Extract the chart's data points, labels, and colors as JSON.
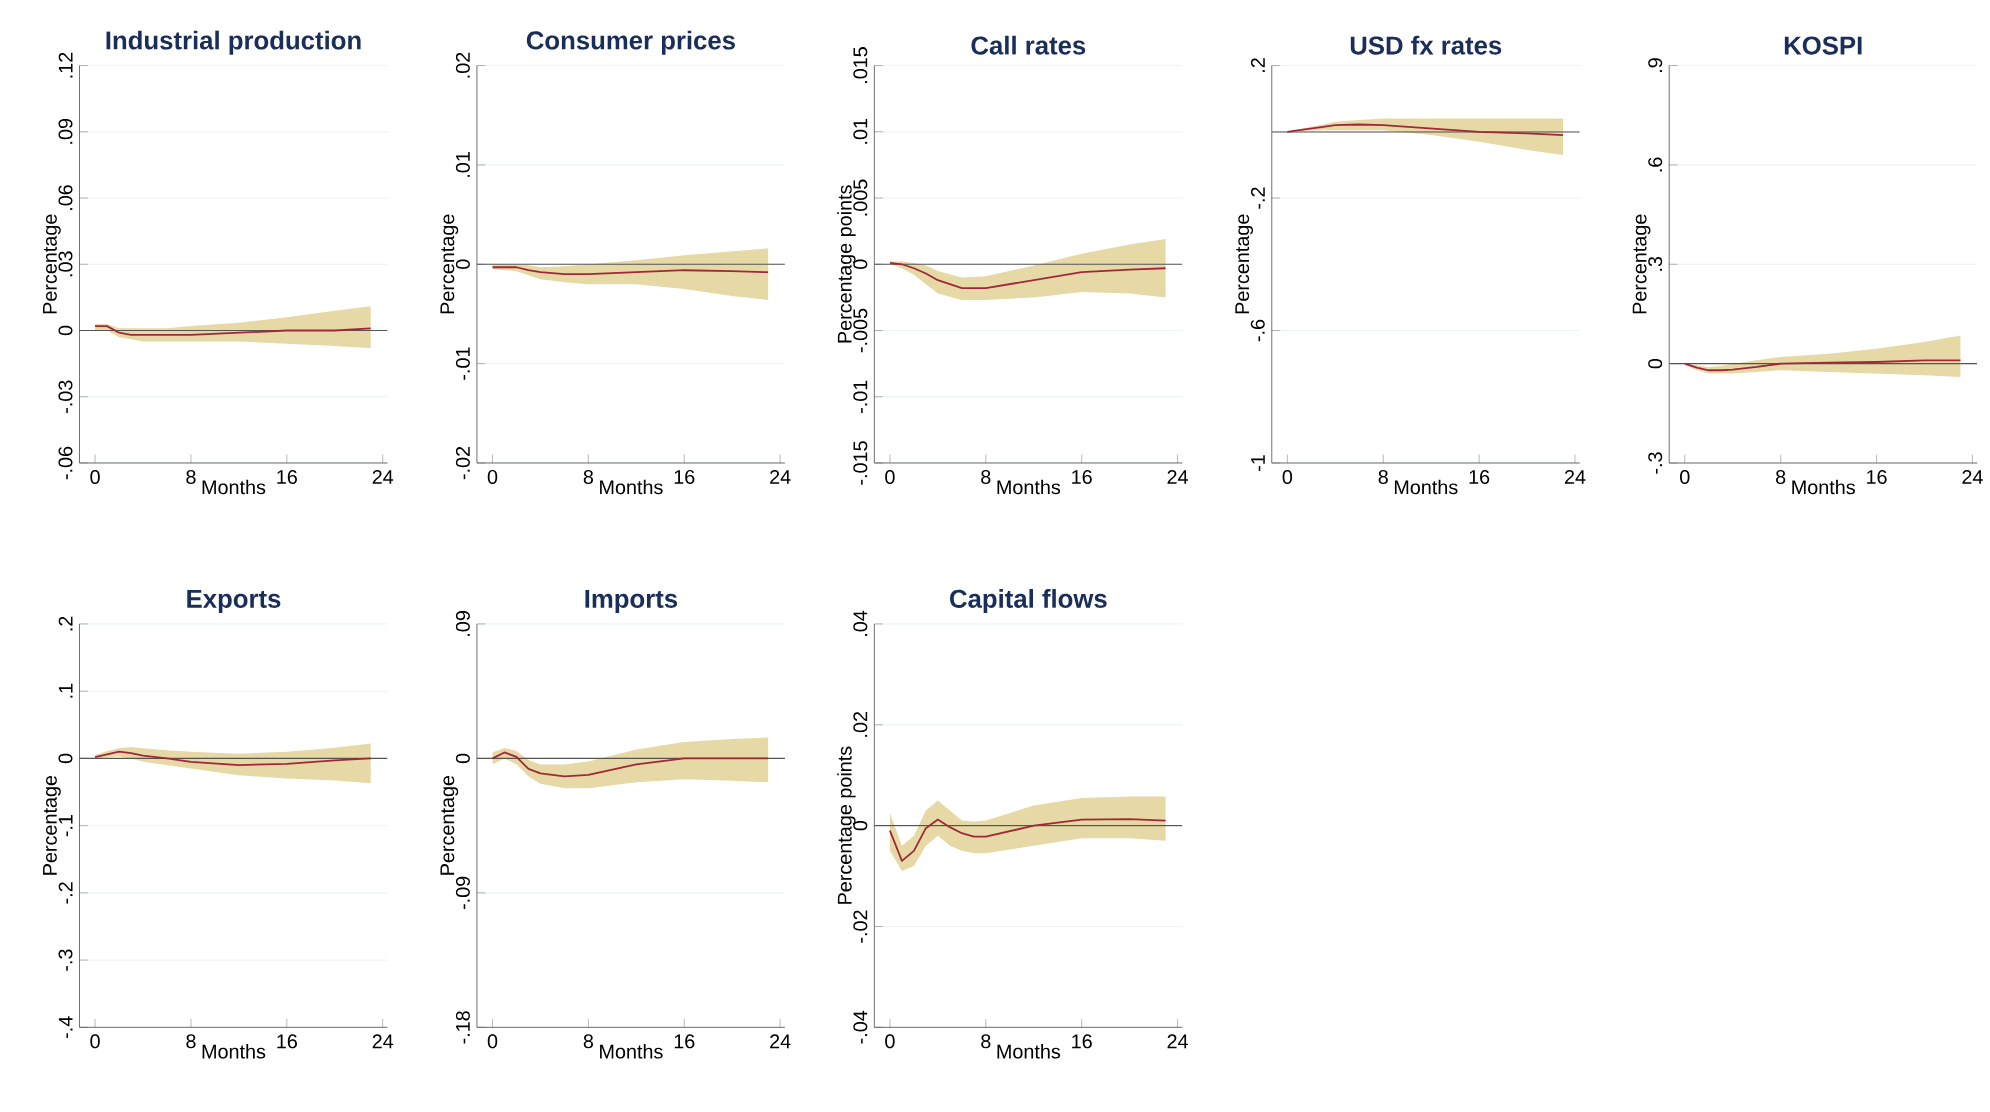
{
  "chart_data": [
    {
      "type": "line",
      "title": "Industrial production",
      "xlabel": "Months",
      "ylabel": "Percentage",
      "x": [
        0,
        1,
        2,
        3,
        4,
        6,
        8,
        12,
        16,
        20,
        23
      ],
      "xlim": [
        -1.3,
        24.4
      ],
      "xticks": [
        0,
        8,
        16,
        24
      ],
      "ylim": [
        -0.06,
        0.12
      ],
      "yticks": [
        {
          "value": -0.06,
          "label": "-.06"
        },
        {
          "value": -0.03,
          "label": "-.03"
        },
        0,
        {
          "value": 0.03,
          "label": ".03"
        },
        {
          "value": 0.06,
          "label": ".06"
        },
        {
          "value": 0.09,
          "label": ".09"
        },
        {
          "value": 0.12,
          "label": ".12"
        }
      ],
      "grid": "y",
      "ref_lines": [
        {
          "axis": "y",
          "value": 0,
          "color": "#555555"
        }
      ],
      "series": [
        {
          "color": "#a0283a",
          "values": [
            0.002,
            0.002,
            -0.001,
            -0.002,
            -0.002,
            -0.002,
            -0.002,
            -0.001,
            0,
            0,
            0.001
          ],
          "lower": [
            0,
            0,
            -0.003,
            -0.004,
            -0.005,
            -0.005,
            -0.005,
            -0.005,
            -0.006,
            -0.007,
            -0.008
          ],
          "upper": [
            0.003,
            0.003,
            0.001,
            0.001,
            0.001,
            0.001,
            0.002,
            0.0035,
            0.006,
            0.009,
            0.011
          ]
        }
      ]
    },
    {
      "type": "line",
      "title": "Consumer prices",
      "xlabel": "Months",
      "ylabel": "Percentage",
      "x": [
        0,
        1,
        2,
        3,
        4,
        6,
        8,
        12,
        16,
        20,
        23
      ],
      "xlim": [
        -1.3,
        24.4
      ],
      "xticks": [
        0,
        8,
        16,
        24
      ],
      "ylim": [
        -0.02,
        0.02
      ],
      "yticks": [
        {
          "value": -0.02,
          "label": "-.02"
        },
        {
          "value": -0.01,
          "label": "-.01"
        },
        0,
        {
          "value": 0.01,
          "label": ".01"
        },
        {
          "value": 0.02,
          "label": ".02"
        }
      ],
      "grid": "y",
      "ref_lines": [
        {
          "axis": "y",
          "value": 0,
          "color": "#555555"
        }
      ],
      "series": [
        {
          "color": "#a0283a",
          "values": [
            -0.0003,
            -0.0003,
            -0.0003,
            -0.0006,
            -0.0008,
            -0.001,
            -0.001,
            -0.0008,
            -0.0006,
            -0.0007,
            -0.0008
          ],
          "lower": [
            -0.0005,
            -0.0006,
            -0.0007,
            -0.0011,
            -0.0015,
            -0.0018,
            -0.002,
            -0.002,
            -0.0025,
            -0.0032,
            -0.0036
          ],
          "upper": [
            0,
            0,
            0,
            -0.0001,
            -0.0003,
            -0.0002,
            0,
            0.0004,
            0.0009,
            0.0013,
            0.0016
          ]
        }
      ]
    },
    {
      "type": "line",
      "title": "Call rates",
      "xlabel": "Months",
      "ylabel": "Percentage points",
      "x": [
        0,
        1,
        2,
        3,
        4,
        6,
        8,
        12,
        16,
        20,
        23
      ],
      "xlim": [
        -1.3,
        24.4
      ],
      "xticks": [
        0,
        8,
        16,
        24
      ],
      "ylim": [
        -0.015,
        0.015
      ],
      "yticks": [
        {
          "value": -0.015,
          "label": "-.015"
        },
        {
          "value": -0.01,
          "label": "-.01"
        },
        {
          "value": -0.005,
          "label": "-.005"
        },
        0,
        {
          "value": 0.005,
          "label": ".005"
        },
        {
          "value": 0.01,
          "label": ".01"
        },
        {
          "value": 0.015,
          "label": ".015"
        }
      ],
      "grid": "y",
      "ref_lines": [
        {
          "axis": "y",
          "value": 0,
          "color": "#555555"
        }
      ],
      "series": [
        {
          "color": "#a0283a",
          "values": [
            0.0001,
            0,
            -0.0003,
            -0.0007,
            -0.0012,
            -0.0018,
            -0.0018,
            -0.0012,
            -0.0006,
            -0.0004,
            -0.0003
          ],
          "lower": [
            0,
            -0.0003,
            -0.0008,
            -0.0015,
            -0.0022,
            -0.0027,
            -0.0027,
            -0.0025,
            -0.0021,
            -0.0022,
            -0.0025
          ],
          "upper": [
            0.0002,
            0.0002,
            0.0001,
            -0.0001,
            -0.0005,
            -0.001,
            -0.0009,
            -0.0001,
            0.0008,
            0.0015,
            0.0019
          ]
        }
      ]
    },
    {
      "type": "line",
      "title": "USD fx rates",
      "xlabel": "Months",
      "ylabel": "Percentage",
      "x": [
        0,
        1,
        2,
        3,
        4,
        6,
        8,
        12,
        16,
        20,
        23
      ],
      "xlim": [
        -1.3,
        24.4
      ],
      "xticks": [
        0,
        8,
        16,
        24
      ],
      "ylim": [
        -1,
        0.2
      ],
      "yticks": [
        {
          "value": -1,
          "label": "-1"
        },
        {
          "value": -0.6,
          "label": "-.6"
        },
        {
          "value": -0.2,
          "label": "-.2"
        },
        {
          "value": 0.2,
          "label": ".2"
        }
      ],
      "grid": "y",
      "ref_lines": [
        {
          "axis": "y",
          "value": 0,
          "color": "#555555"
        }
      ],
      "series": [
        {
          "color": "#a0283a",
          "values": [
            0,
            0.005,
            0.01,
            0.015,
            0.02,
            0.022,
            0.02,
            0.01,
            0,
            -0.005,
            -0.01
          ],
          "lower": [
            0,
            0.002,
            0.004,
            0.005,
            0.005,
            0.005,
            0.005,
            -0.01,
            -0.03,
            -0.055,
            -0.07
          ],
          "upper": [
            0,
            0.008,
            0.015,
            0.022,
            0.03,
            0.036,
            0.04,
            0.04,
            0.04,
            0.04,
            0.04
          ]
        }
      ]
    },
    {
      "type": "line",
      "title": "KOSPI",
      "xlabel": "Months",
      "ylabel": "Percentage",
      "x": [
        0,
        1,
        2,
        3,
        4,
        6,
        8,
        12,
        16,
        20,
        23
      ],
      "xlim": [
        -1.3,
        24.4
      ],
      "xticks": [
        0,
        8,
        16,
        24
      ],
      "ylim": [
        -0.3,
        0.9
      ],
      "yticks": [
        {
          "value": -0.3,
          "label": "-.3"
        },
        0,
        {
          "value": 0.3,
          "label": ".3"
        },
        {
          "value": 0.6,
          "label": ".6"
        },
        {
          "value": 0.9,
          "label": ".9"
        }
      ],
      "grid": "y",
      "ref_lines": [
        {
          "axis": "y",
          "value": 0,
          "color": "#555555"
        }
      ],
      "series": [
        {
          "color": "#a0283a",
          "values": [
            0,
            -0.012,
            -0.02,
            -0.02,
            -0.018,
            -0.01,
            0,
            0.003,
            0.005,
            0.01,
            0.01
          ],
          "lower": [
            -0.005,
            -0.02,
            -0.03,
            -0.03,
            -0.03,
            -0.025,
            -0.02,
            -0.025,
            -0.03,
            -0.035,
            -0.04
          ],
          "upper": [
            0,
            -0.005,
            -0.01,
            -0.007,
            0,
            0.01,
            0.02,
            0.03,
            0.045,
            0.065,
            0.085
          ]
        }
      ]
    },
    {
      "type": "line",
      "title": "Exports",
      "xlabel": "Months",
      "ylabel": "Percentage",
      "x": [
        0,
        1,
        2,
        3,
        4,
        6,
        8,
        12,
        16,
        20,
        23
      ],
      "xlim": [
        -1.3,
        24.4
      ],
      "xticks": [
        0,
        8,
        16,
        24
      ],
      "ylim": [
        -0.4,
        0.2
      ],
      "yticks": [
        {
          "value": -0.4,
          "label": "-.4"
        },
        {
          "value": -0.3,
          "label": "-.3"
        },
        {
          "value": -0.2,
          "label": "-.2"
        },
        {
          "value": -0.1,
          "label": "-.1"
        },
        0,
        {
          "value": 0.1,
          "label": ".1"
        },
        {
          "value": 0.2,
          "label": ".2"
        }
      ],
      "grid": "y",
      "ref_lines": [
        {
          "axis": "y",
          "value": 0,
          "color": "#555555"
        }
      ],
      "series": [
        {
          "color": "#a0283a",
          "values": [
            0.002,
            0.006,
            0.01,
            0.008,
            0.004,
            0,
            -0.005,
            -0.01,
            -0.008,
            -0.003,
            0
          ],
          "lower": [
            0,
            0.002,
            0.003,
            0,
            -0.005,
            -0.01,
            -0.015,
            -0.025,
            -0.03,
            -0.033,
            -0.037
          ],
          "upper": [
            0.005,
            0.011,
            0.015,
            0.017,
            0.015,
            0.012,
            0.01,
            0.007,
            0.01,
            0.016,
            0.022
          ]
        }
      ]
    },
    {
      "type": "line",
      "title": "Imports",
      "xlabel": "Months",
      "ylabel": "Percentage",
      "x": [
        0,
        1,
        2,
        3,
        4,
        6,
        8,
        12,
        16,
        20,
        23
      ],
      "xlim": [
        -1.3,
        24.4
      ],
      "xticks": [
        0,
        8,
        16,
        24
      ],
      "ylim": [
        -0.18,
        0.09
      ],
      "yticks": [
        {
          "value": -0.18,
          "label": "-.18"
        },
        {
          "value": -0.09,
          "label": "-.09"
        },
        0,
        {
          "value": 0.09,
          "label": ".09"
        }
      ],
      "grid": "y",
      "ref_lines": [
        {
          "axis": "y",
          "value": 0,
          "color": "#555555"
        }
      ],
      "series": [
        {
          "color": "#a0283a",
          "values": [
            0,
            0.004,
            0.001,
            -0.007,
            -0.01,
            -0.012,
            -0.011,
            -0.004,
            0,
            0,
            0
          ],
          "lower": [
            -0.004,
            0,
            -0.004,
            -0.012,
            -0.017,
            -0.02,
            -0.02,
            -0.016,
            -0.014,
            -0.015,
            -0.016
          ],
          "upper": [
            0.004,
            0.007,
            0.005,
            -0.001,
            -0.004,
            -0.004,
            -0.002,
            0.006,
            0.011,
            0.013,
            0.014
          ]
        }
      ]
    },
    {
      "type": "line",
      "title": "Capital flows",
      "xlabel": "Months",
      "ylabel": "Percentage points",
      "x": [
        0,
        1,
        2,
        3,
        4,
        5,
        6,
        7,
        8,
        12,
        16,
        20,
        23
      ],
      "xlim": [
        -1.3,
        24.4
      ],
      "xticks": [
        0,
        8,
        16,
        24
      ],
      "ylim": [
        -0.04,
        0.04
      ],
      "yticks": [
        {
          "value": -0.04,
          "label": "-.04"
        },
        {
          "value": -0.02,
          "label": "-.02"
        },
        0,
        {
          "value": 0.02,
          "label": ".02"
        },
        {
          "value": 0.04,
          "label": ".04"
        }
      ],
      "grid": "y",
      "ref_lines": [
        {
          "axis": "y",
          "value": 0,
          "color": "#555555"
        }
      ],
      "series": [
        {
          "color": "#a0283a",
          "values": [
            -0.001,
            -0.007,
            -0.005,
            -0.0005,
            0.0012,
            -0.0003,
            -0.0015,
            -0.0022,
            -0.0022,
            0,
            0.0012,
            0.0013,
            0.001
          ],
          "lower": [
            -0.005,
            -0.009,
            -0.008,
            -0.004,
            -0.002,
            -0.004,
            -0.005,
            -0.0055,
            -0.0055,
            -0.004,
            -0.0025,
            -0.0025,
            -0.003
          ],
          "upper": [
            0.0025,
            -0.004,
            -0.002,
            0.003,
            0.005,
            0.003,
            0.001,
            0.0008,
            0.001,
            0.004,
            0.0055,
            0.0058,
            0.0058
          ]
        }
      ]
    }
  ]
}
